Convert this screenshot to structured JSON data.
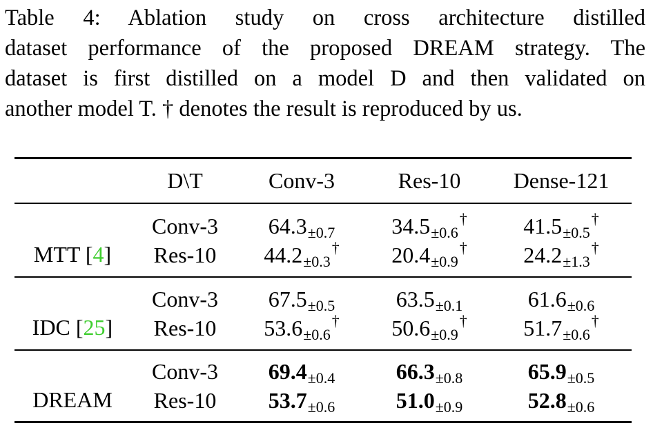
{
  "caption": {
    "lines": [
      "Table 4:  Ablation study on cross architecture distilled",
      "dataset performance of the proposed DREAM strategy. The",
      "dataset is first distilled on a model D and then validated on",
      "another model T. † denotes the result is reproduced by us."
    ]
  },
  "table": {
    "header": {
      "corner": "D\\T",
      "cols": [
        "Conv-3",
        "Res-10",
        "Dense-121"
      ]
    },
    "groups": [
      {
        "method": "MTT [",
        "cite": "4",
        "cite_close": "]",
        "rows": [
          {
            "d": "Conv-3",
            "cells": [
              {
                "v": "64.3",
                "pm": "±0.7",
                "dag": ""
              },
              {
                "v": "34.5",
                "pm": "±0.6",
                "dag": "†"
              },
              {
                "v": "41.5",
                "pm": "±0.5",
                "dag": "†"
              }
            ]
          },
          {
            "d": "Res-10",
            "cells": [
              {
                "v": "44.2",
                "pm": "±0.3",
                "dag": "†"
              },
              {
                "v": "20.4",
                "pm": "±0.9",
                "dag": "†"
              },
              {
                "v": "24.2",
                "pm": "±1.3",
                "dag": "†"
              }
            ]
          }
        ]
      },
      {
        "method": "IDC [",
        "cite": "25",
        "cite_close": "]",
        "rows": [
          {
            "d": "Conv-3",
            "cells": [
              {
                "v": "67.5",
                "pm": "±0.5",
                "dag": ""
              },
              {
                "v": "63.5",
                "pm": "±0.1",
                "dag": ""
              },
              {
                "v": "61.6",
                "pm": "±0.6",
                "dag": ""
              }
            ]
          },
          {
            "d": "Res-10",
            "cells": [
              {
                "v": "53.6",
                "pm": "±0.6",
                "dag": "†"
              },
              {
                "v": "50.6",
                "pm": "±0.9",
                "dag": "†"
              },
              {
                "v": "51.7",
                "pm": "±0.6",
                "dag": "†"
              }
            ]
          }
        ]
      },
      {
        "method": "DREAM",
        "cite": "",
        "cite_close": "",
        "rows": [
          {
            "d": "Conv-3",
            "cells": [
              {
                "v": "69.4",
                "pm": "±0.4",
                "dag": ""
              },
              {
                "v": "66.3",
                "pm": "±0.8",
                "dag": ""
              },
              {
                "v": "65.9",
                "pm": "±0.5",
                "dag": ""
              }
            ]
          },
          {
            "d": "Res-10",
            "cells": [
              {
                "v": "53.7",
                "pm": "±0.6",
                "dag": ""
              },
              {
                "v": "51.0",
                "pm": "±0.9",
                "dag": ""
              },
              {
                "v": "52.8",
                "pm": "±0.6",
                "dag": ""
              }
            ]
          }
        ]
      }
    ],
    "bold_group": 2
  }
}
